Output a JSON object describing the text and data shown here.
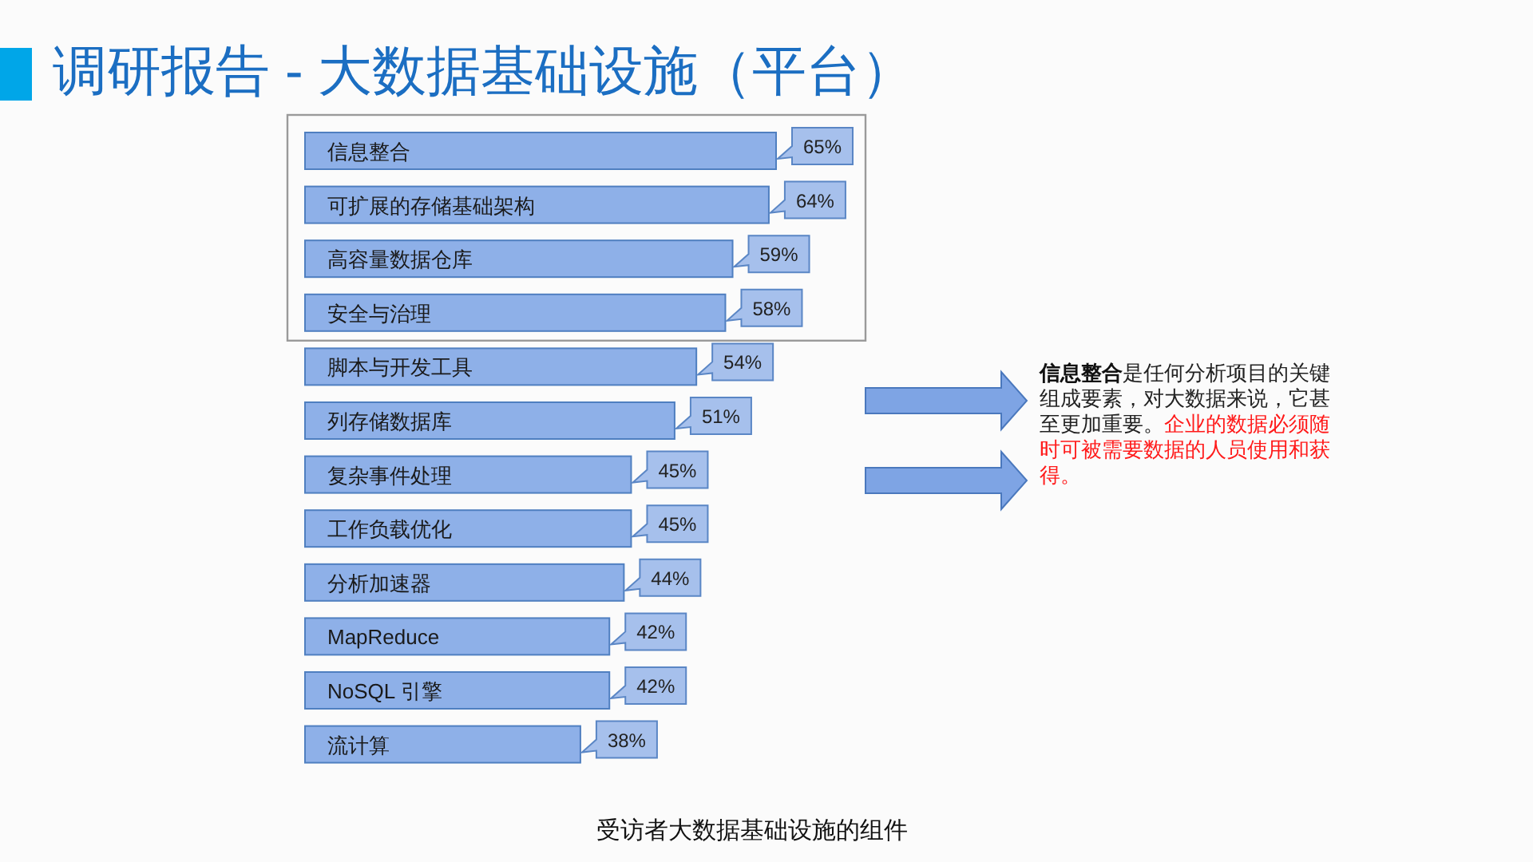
{
  "chart_data": {
    "type": "bar",
    "orientation": "horizontal",
    "title": "调研报告 - 大数据基础设施（平台）",
    "categories": [
      "信息整合",
      "可扩展的存储基础架构",
      "高容量数据仓库",
      "安全与治理",
      "脚本与开发工具",
      "列存储数据库",
      "复杂事件处理",
      "工作负载优化",
      "分析加速器",
      "MapReduce",
      "NoSQL 引擎",
      "流计算"
    ],
    "values": [
      65,
      64,
      59,
      58,
      54,
      51,
      45,
      45,
      44,
      42,
      42,
      38
    ],
    "value_labels": [
      "65%",
      "64%",
      "59%",
      "58%",
      "54%",
      "51%",
      "45%",
      "45%",
      "44%",
      "42%",
      "42%",
      "38%"
    ],
    "color": "#8eb0e8",
    "annotations": [
      "信息整合",
      "是任何分析项目的关键",
      "组成要素，对大数据来说，它甚",
      "至更加重要。",
      "企业的数据必须随",
      "时可被需要数据的人员使用和获",
      "得。",
      "受访者大数据基础设施的组件"
    ]
  }
}
